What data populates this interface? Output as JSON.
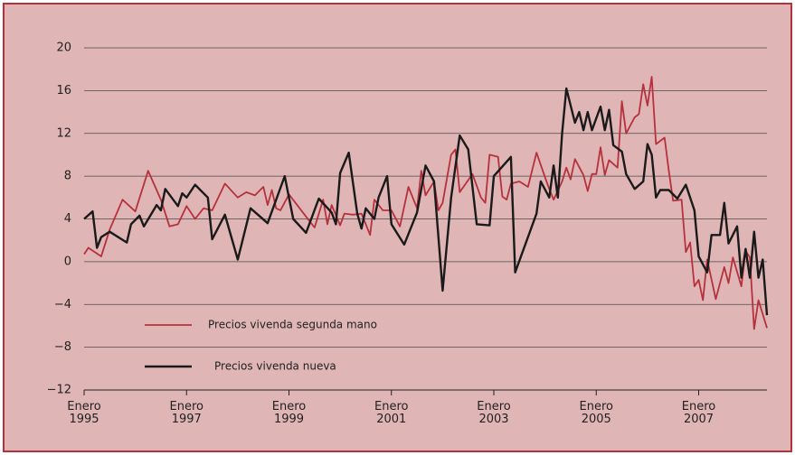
{
  "chart_data": {
    "type": "line",
    "xlim": [
      "1995-01",
      "2008-05"
    ],
    "xticks": [
      {
        "value": "1995-01",
        "label": "Enero\n1995"
      },
      {
        "value": "1997-01",
        "label": "Enero\n1997"
      },
      {
        "value": "1999-01",
        "label": "Enero\n1999"
      },
      {
        "value": "2001-01",
        "label": "Enero\n2001"
      },
      {
        "value": "2003-01",
        "label": "Enero\n2003"
      },
      {
        "value": "2005-01",
        "label": "Enero\n2005"
      },
      {
        "value": "2007-01",
        "label": "Enero\n2007"
      }
    ],
    "ylim": [
      -12,
      20
    ],
    "yticks": [
      {
        "value": -12,
        "label": "−12"
      },
      {
        "value": -8,
        "label": "−8"
      },
      {
        "value": -4,
        "label": "−4"
      },
      0,
      4,
      8,
      12,
      16,
      20
    ],
    "grid": true,
    "legend": "lower-left",
    "series": [
      {
        "name": "Precios vivenda segunda mano",
        "color": "#b5323d",
        "x": [
          "1995-01",
          "1995-02",
          "1995-05",
          "1995-07",
          "1995-10",
          "1996-01",
          "1996-04",
          "1996-07",
          "1996-09",
          "1996-11",
          "1997-01",
          "1997-03",
          "1997-05",
          "1997-07",
          "1997-10",
          "1998-01",
          "1998-03",
          "1998-05",
          "1998-07",
          "1998-08",
          "1998-09",
          "1998-10",
          "1998-11",
          "1999-01",
          "1999-06",
          "1999-07",
          "1999-09",
          "1999-10",
          "1999-11",
          "2000-01",
          "2000-02",
          "2000-04",
          "2000-06",
          "2000-08",
          "2000-09",
          "2000-11",
          "2001-01",
          "2001-03",
          "2001-05",
          "2001-07",
          "2001-08",
          "2001-09",
          "2001-11",
          "2001-12",
          "2002-01",
          "2002-03",
          "2002-04",
          "2002-05",
          "2002-08",
          "2002-10",
          "2002-11",
          "2002-12",
          "2003-02",
          "2003-03",
          "2003-04",
          "2003-05",
          "2003-07",
          "2003-09",
          "2003-11",
          "2004-01",
          "2004-02",
          "2004-03",
          "2004-05",
          "2004-06",
          "2004-07",
          "2004-08",
          "2004-10",
          "2004-11",
          "2004-12",
          "2005-01",
          "2005-02",
          "2005-03",
          "2005-04",
          "2005-06",
          "2005-07",
          "2005-08",
          "2005-10",
          "2005-11",
          "2005-12",
          "2006-01",
          "2006-02",
          "2006-03",
          "2006-05",
          "2006-06",
          "2006-07",
          "2006-09",
          "2006-10",
          "2006-11",
          "2006-12",
          "2007-01",
          "2007-02",
          "2007-03",
          "2007-05",
          "2007-07",
          "2007-08",
          "2007-09",
          "2007-11",
          "2007-12",
          "2008-01",
          "2008-02",
          "2008-03",
          "2008-05"
        ],
        "values": [
          0.7,
          1.3,
          0.5,
          3.0,
          5.8,
          4.7,
          8.5,
          5.8,
          3.3,
          3.5,
          5.2,
          4.0,
          5.0,
          4.8,
          7.3,
          6.0,
          6.5,
          6.2,
          7.0,
          5.3,
          6.7,
          5.0,
          4.8,
          6.3,
          3.7,
          3.2,
          5.8,
          3.5,
          5.3,
          3.4,
          4.5,
          4.4,
          4.5,
          2.5,
          5.8,
          4.8,
          4.8,
          3.3,
          7.0,
          5.0,
          8.5,
          6.2,
          7.5,
          4.8,
          5.5,
          10.0,
          10.5,
          6.5,
          8.2,
          6.0,
          5.5,
          10.0,
          9.8,
          6.1,
          5.8,
          7.3,
          7.5,
          7.0,
          10.2,
          7.9,
          6.8,
          5.8,
          7.5,
          8.8,
          7.7,
          9.6,
          8.1,
          6.6,
          8.2,
          8.2,
          10.7,
          8.1,
          9.5,
          8.8,
          15.0,
          12.0,
          13.5,
          13.8,
          16.6,
          14.6,
          17.3,
          11.0,
          11.6,
          8.5,
          5.7,
          5.8,
          0.9,
          1.8,
          -2.3,
          -1.7,
          -3.6,
          0.2,
          -3.5,
          -0.5,
          -2.0,
          0.4,
          -2.3,
          1.0,
          0.4,
          -6.3,
          -3.6,
          -6.2
        ]
      },
      {
        "name": "Precios vivenda nueva",
        "color": "#1a1a1a",
        "x": [
          "1995-01",
          "1995-03",
          "1995-04",
          "1995-05",
          "1995-07",
          "1995-11",
          "1995-12",
          "1996-02",
          "1996-03",
          "1996-06",
          "1996-07",
          "1996-08",
          "1996-11",
          "1996-12",
          "1997-01",
          "1997-03",
          "1997-06",
          "1997-07",
          "1997-10",
          "1998-01",
          "1998-04",
          "1998-08",
          "1998-12",
          "1999-02",
          "1999-05",
          "1999-08",
          "1999-11",
          "1999-12",
          "2000-01",
          "2000-03",
          "2000-05",
          "2000-06",
          "2000-07",
          "2000-09",
          "2000-10",
          "2000-12",
          "2001-01",
          "2001-04",
          "2001-07",
          "2001-09",
          "2001-11",
          "2002-01",
          "2002-03",
          "2002-05",
          "2002-07",
          "2002-09",
          "2002-12",
          "2003-01",
          "2003-05",
          "2003-06",
          "2003-11",
          "2003-12",
          "2004-02",
          "2004-03",
          "2004-04",
          "2004-05",
          "2004-06",
          "2004-08",
          "2004-09",
          "2004-10",
          "2004-11",
          "2004-12",
          "2005-02",
          "2005-03",
          "2005-04",
          "2005-05",
          "2005-07",
          "2005-08",
          "2005-10",
          "2005-12",
          "2006-01",
          "2006-02",
          "2006-03",
          "2006-04",
          "2006-06",
          "2006-08",
          "2006-10",
          "2006-12",
          "2007-01",
          "2007-03",
          "2007-04",
          "2007-06",
          "2007-07",
          "2007-08",
          "2007-10",
          "2007-11",
          "2007-12",
          "2008-01",
          "2008-02",
          "2008-03",
          "2008-04",
          "2008-05"
        ],
        "values": [
          4.0,
          4.7,
          1.3,
          2.3,
          2.8,
          1.8,
          3.5,
          4.3,
          3.3,
          5.3,
          4.8,
          6.8,
          5.2,
          6.4,
          6.0,
          7.2,
          6.0,
          2.1,
          4.4,
          0.2,
          5.0,
          3.6,
          8.0,
          4.0,
          2.7,
          5.9,
          4.6,
          3.5,
          8.3,
          10.2,
          4.5,
          3.1,
          5.0,
          4.0,
          6.0,
          8.0,
          3.5,
          1.6,
          4.6,
          9.0,
          7.5,
          -2.7,
          6.0,
          11.8,
          10.5,
          3.5,
          3.4,
          8.0,
          9.8,
          -1.0,
          4.5,
          7.5,
          6.0,
          9.0,
          6.0,
          12.0,
          16.2,
          13.0,
          14.0,
          12.3,
          14.0,
          12.3,
          14.5,
          12.3,
          14.2,
          10.9,
          10.3,
          8.2,
          6.8,
          7.5,
          11.0,
          10.0,
          6.0,
          6.7,
          6.7,
          5.9,
          7.2,
          4.8,
          0.5,
          -1.0,
          2.5,
          2.5,
          5.5,
          1.7,
          3.3,
          -1.5,
          1.2,
          -1.5,
          2.8,
          -1.5,
          0.2,
          -5.0
        ]
      }
    ]
  }
}
